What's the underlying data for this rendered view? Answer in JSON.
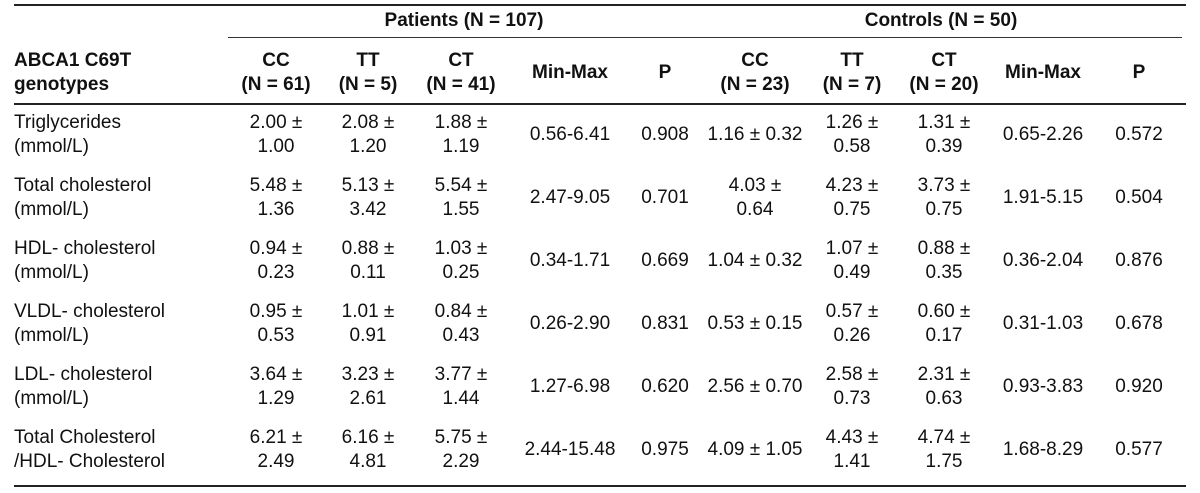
{
  "groups": {
    "patients": "Patients (N = 107)",
    "controls": "Controls (N = 50)"
  },
  "header": {
    "first": [
      "ABCA1 C69T",
      "genotypes"
    ],
    "patients": [
      [
        "CC",
        "(N = 61)"
      ],
      [
        "TT",
        "(N = 5)"
      ],
      [
        "CT",
        "(N = 41)"
      ],
      [
        "Min-Max",
        ""
      ],
      [
        "P",
        ""
      ]
    ],
    "controls": [
      [
        "CC",
        "(N = 23)"
      ],
      [
        "TT",
        "(N = 7)"
      ],
      [
        "CT",
        "(N = 20)"
      ],
      [
        "Min-Max",
        ""
      ],
      [
        "P",
        ""
      ]
    ]
  },
  "rows": [
    {
      "label": [
        "Triglycerides",
        "(mmol/L)"
      ],
      "cells": [
        [
          "2.00 ±",
          "1.00"
        ],
        [
          "2.08 ±",
          "1.20"
        ],
        [
          "1.88 ±",
          "1.19"
        ],
        [
          "0.56-6.41",
          ""
        ],
        [
          "0.908",
          ""
        ],
        [
          "1.16 ± 0.32",
          ""
        ],
        [
          "1.26 ±",
          "0.58"
        ],
        [
          "1.31 ±",
          "0.39"
        ],
        [
          "0.65-2.26",
          ""
        ],
        [
          "0.572",
          ""
        ]
      ]
    },
    {
      "label": [
        "Total cholesterol",
        "(mmol/L)"
      ],
      "cells": [
        [
          "5.48 ±",
          "1.36"
        ],
        [
          "5.13 ±",
          "3.42"
        ],
        [
          "5.54 ±",
          "1.55"
        ],
        [
          "2.47-9.05",
          ""
        ],
        [
          "0.701",
          ""
        ],
        [
          "4.03 ±",
          "0.64"
        ],
        [
          "4.23 ±",
          "0.75"
        ],
        [
          "3.73 ±",
          "0.75"
        ],
        [
          "1.91-5.15",
          ""
        ],
        [
          "0.504",
          ""
        ]
      ]
    },
    {
      "label": [
        "HDL- cholesterol",
        "(mmol/L)"
      ],
      "cells": [
        [
          "0.94 ±",
          "0.23"
        ],
        [
          "0.88 ±",
          "0.11"
        ],
        [
          "1.03 ±",
          "0.25"
        ],
        [
          "0.34-1.71",
          ""
        ],
        [
          "0.669",
          ""
        ],
        [
          "1.04 ± 0.32",
          ""
        ],
        [
          "1.07 ±",
          "0.49"
        ],
        [
          "0.88 ±",
          "0.35"
        ],
        [
          "0.36-2.04",
          ""
        ],
        [
          "0.876",
          ""
        ]
      ]
    },
    {
      "label": [
        "VLDL- cholesterol",
        "(mmol/L)"
      ],
      "cells": [
        [
          "0.95 ±",
          "0.53"
        ],
        [
          "1.01 ±",
          "0.91"
        ],
        [
          "0.84 ±",
          "0.43"
        ],
        [
          "0.26-2.90",
          ""
        ],
        [
          "0.831",
          ""
        ],
        [
          "0.53 ± 0.15",
          ""
        ],
        [
          "0.57 ±",
          "0.26"
        ],
        [
          "0.60 ±",
          "0.17"
        ],
        [
          "0.31-1.03",
          ""
        ],
        [
          "0.678",
          ""
        ]
      ]
    },
    {
      "label": [
        "LDL- cholesterol",
        "(mmol/L)"
      ],
      "cells": [
        [
          "3.64 ±",
          "1.29"
        ],
        [
          "3.23 ±",
          "2.61"
        ],
        [
          "3.77 ±",
          "1.44"
        ],
        [
          "1.27-6.98",
          ""
        ],
        [
          "0.620",
          ""
        ],
        [
          "2.56 ± 0.70",
          ""
        ],
        [
          "2.58 ±",
          "0.73"
        ],
        [
          "2.31 ±",
          "0.63"
        ],
        [
          "0.93-3.83",
          ""
        ],
        [
          "0.920",
          ""
        ]
      ]
    },
    {
      "label": [
        "Total Cholesterol",
        "/HDL- Cholesterol"
      ],
      "cells": [
        [
          "6.21 ±",
          "2.49"
        ],
        [
          "6.16 ±",
          "4.81"
        ],
        [
          "5.75 ±",
          "2.29"
        ],
        [
          "2.44-15.48",
          ""
        ],
        [
          "0.975",
          ""
        ],
        [
          "4.09 ± 1.05",
          ""
        ],
        [
          "4.43 ±",
          "1.41"
        ],
        [
          "4.74 ±",
          "1.75"
        ],
        [
          "1.68-8.29",
          ""
        ],
        [
          "0.577",
          ""
        ]
      ]
    }
  ]
}
